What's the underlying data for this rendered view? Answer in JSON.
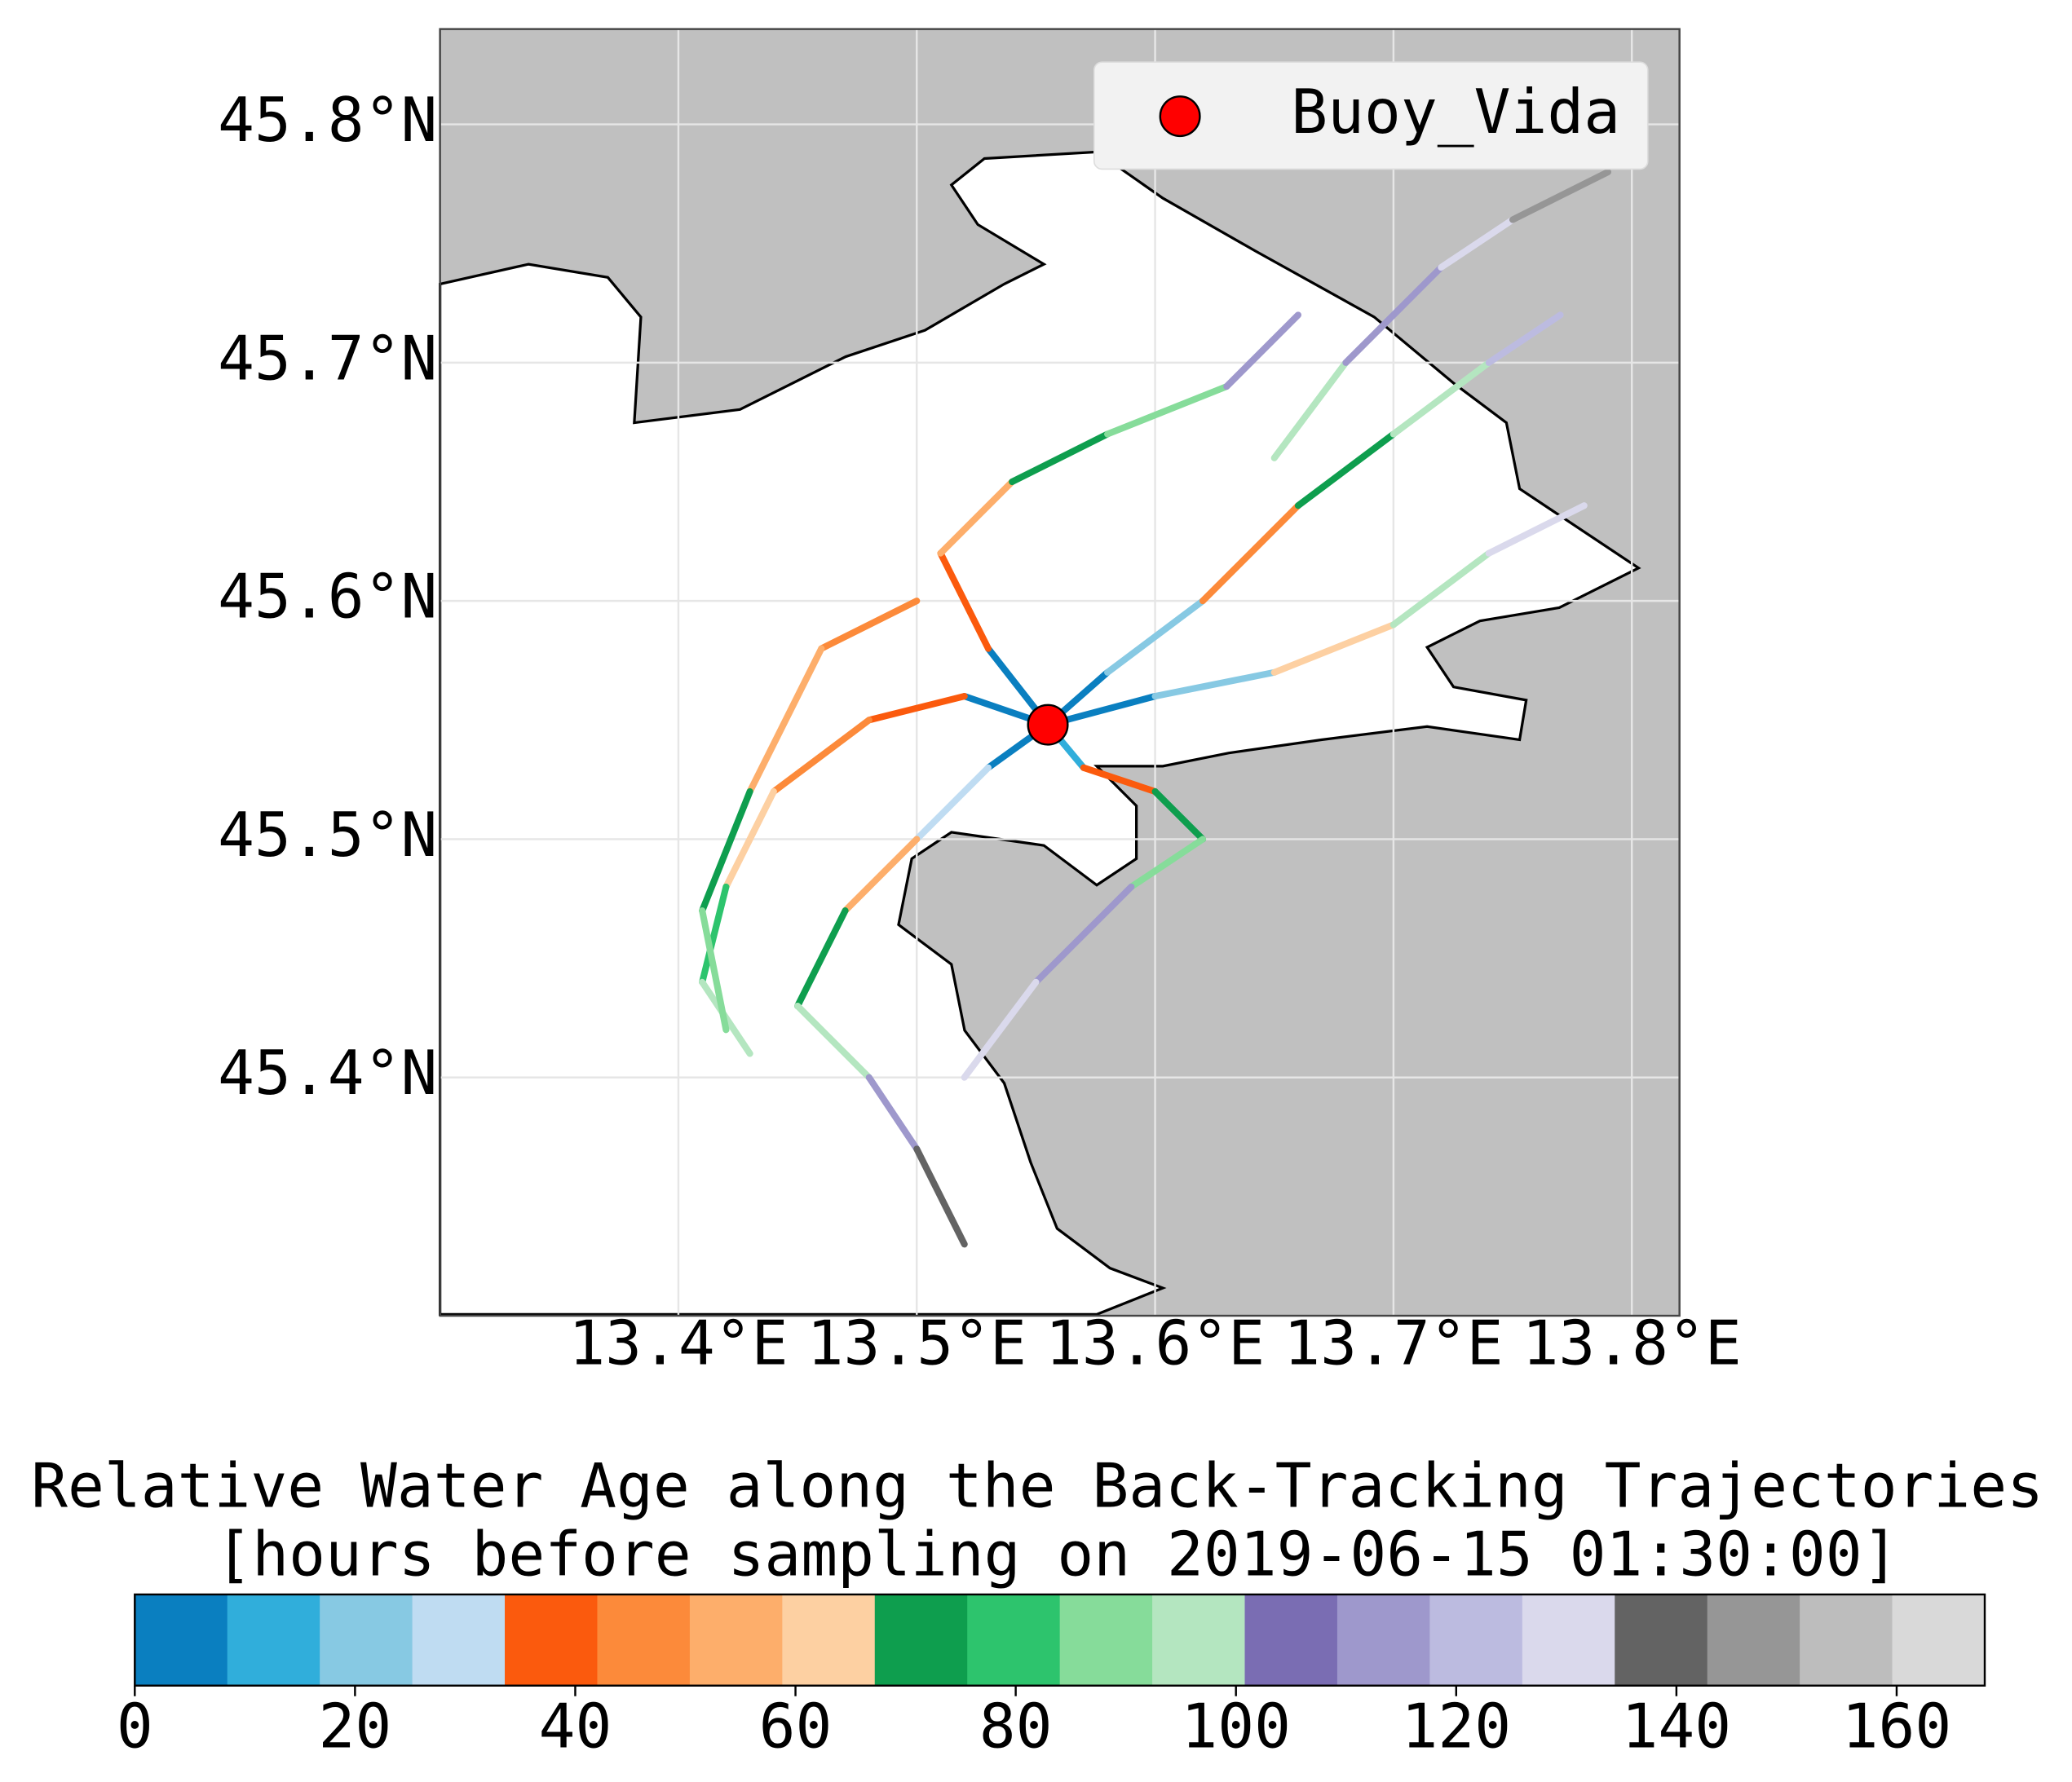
{
  "chart_data": {
    "type": "map",
    "xlim": [
      13.3,
      13.82
    ],
    "ylim": [
      45.3,
      45.84
    ],
    "xticks": [
      {
        "value": 13.4,
        "label": "13.4°E"
      },
      {
        "value": 13.5,
        "label": "13.5°E"
      },
      {
        "value": 13.6,
        "label": "13.6°E"
      },
      {
        "value": 13.7,
        "label": "13.7°E"
      },
      {
        "value": 13.8,
        "label": "13.8°E"
      }
    ],
    "yticks": [
      {
        "value": 45.4,
        "label": "45.4°N"
      },
      {
        "value": 45.5,
        "label": "45.5°N"
      },
      {
        "value": 45.6,
        "label": "45.6°N"
      },
      {
        "value": 45.7,
        "label": "45.7°N"
      },
      {
        "value": 45.8,
        "label": "45.8°N"
      }
    ],
    "grid": true,
    "legend": "upper right",
    "points": [
      {
        "name": "Buoy_Vida",
        "lon": 13.555,
        "lat": 45.548,
        "color": "#ff0000"
      }
    ],
    "trajectories": [
      {
        "lon": [
          13.555,
          13.58,
          13.62,
          13.66,
          13.7,
          13.74,
          13.77
        ],
        "lat": [
          45.548,
          45.57,
          45.6,
          45.64,
          45.67,
          45.7,
          45.72
        ],
        "age": [
          0,
          20,
          45,
          75,
          100,
          125,
          150
        ]
      },
      {
        "lon": [
          13.555,
          13.53,
          13.5,
          13.47,
          13.45,
          13.48,
          13.5,
          13.52
        ],
        "lat": [
          45.548,
          45.53,
          45.5,
          45.47,
          45.43,
          45.4,
          45.37,
          45.33
        ],
        "age": [
          0,
          30,
          55,
          75,
          95,
          115,
          135,
          155
        ]
      },
      {
        "lon": [
          13.555,
          13.52,
          13.48,
          13.44,
          13.42,
          13.41,
          13.43
        ],
        "lat": [
          45.548,
          45.56,
          45.55,
          45.52,
          45.48,
          45.44,
          45.41
        ],
        "age": [
          0,
          35,
          50,
          65,
          80,
          95,
          110
        ]
      },
      {
        "lon": [
          13.555,
          13.53,
          13.51,
          13.54,
          13.58,
          13.63,
          13.66
        ],
        "lat": [
          45.548,
          45.58,
          45.62,
          45.65,
          45.67,
          45.69,
          45.72
        ],
        "age": [
          5,
          38,
          55,
          70,
          88,
          110,
          130
        ]
      },
      {
        "lon": [
          13.555,
          13.6,
          13.65,
          13.7,
          13.74,
          13.78
        ],
        "lat": [
          45.548,
          45.56,
          45.57,
          45.59,
          45.62,
          45.64
        ],
        "age": [
          0,
          25,
          60,
          100,
          130,
          160
        ]
      },
      {
        "lon": [
          13.555,
          13.57,
          13.6,
          13.62,
          13.59,
          13.55,
          13.52
        ],
        "lat": [
          45.548,
          45.53,
          45.52,
          45.5,
          45.48,
          45.44,
          45.4
        ],
        "age": [
          10,
          40,
          70,
          90,
          110,
          130,
          150
        ]
      },
      {
        "lon": [
          13.5,
          13.46,
          13.43,
          13.41,
          13.42
        ],
        "lat": [
          45.6,
          45.58,
          45.52,
          45.47,
          45.42
        ],
        "age": [
          45,
          58,
          72,
          85,
          100
        ]
      },
      {
        "lon": [
          13.65,
          13.68,
          13.72,
          13.75,
          13.79
        ],
        "lat": [
          45.66,
          45.7,
          45.74,
          45.76,
          45.78
        ],
        "age": [
          100,
          115,
          130,
          145,
          160
        ]
      }
    ],
    "colorbar": {
      "title": [
        "Relative Water Age along the Back-Tracking Trajectories",
        "[hours before sampling on 2019-06-15 01:30:00]"
      ],
      "lim": [
        0,
        168
      ],
      "ticks": [
        0,
        20,
        40,
        60,
        80,
        100,
        120,
        140,
        160
      ],
      "colors": [
        "#0a7fc0",
        "#30aedb",
        "#87c9e3",
        "#bfdcf2",
        "#fb5a0d",
        "#fc8a3a",
        "#fdae6b",
        "#fdd0a2",
        "#0e9e4e",
        "#2dc46d",
        "#86dc9a",
        "#b4e6c0",
        "#7a6db3",
        "#9e98cc",
        "#bcbbe0",
        "#dad9ec",
        "#636363",
        "#969696",
        "#bdbdbd",
        "#d9d9d9"
      ]
    }
  }
}
